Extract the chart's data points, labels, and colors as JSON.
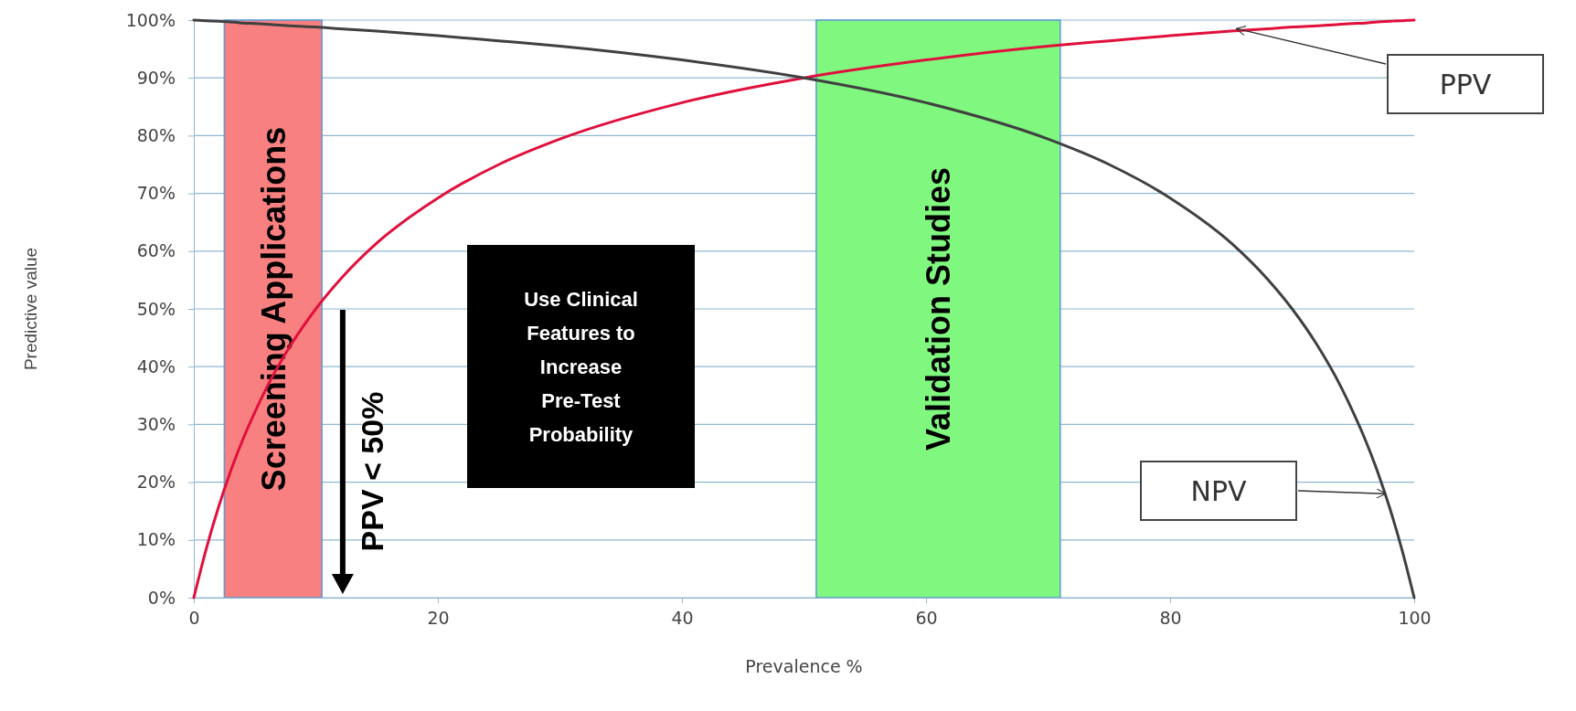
{
  "chart_data": {
    "type": "line",
    "xlabel": "Prevalence %",
    "ylabel": "Predictive value",
    "x": [
      0,
      1,
      2,
      3,
      4,
      5,
      6,
      8,
      10,
      12,
      15,
      20,
      25,
      30,
      40,
      50,
      60,
      70,
      75,
      80,
      85,
      88,
      90,
      92,
      94,
      95,
      96,
      97,
      98,
      99,
      100
    ],
    "series": [
      {
        "name": "PPV",
        "color": "#e0103c",
        "values": [
          0,
          8.3,
          15.5,
          21.8,
          27.3,
          32.1,
          36.5,
          43.9,
          50,
          55.1,
          61.4,
          69.2,
          75,
          79.4,
          85.7,
          90,
          93.1,
          95.5,
          96.4,
          97.3,
          98.1,
          98.5,
          98.8,
          99,
          99.3,
          99.4,
          99.5,
          99.7,
          99.8,
          99.9,
          100
        ]
      },
      {
        "name": "NPV",
        "color": "#404040",
        "values": [
          100,
          99.9,
          99.8,
          99.7,
          99.5,
          99.4,
          99.3,
          99,
          98.8,
          98.5,
          98.1,
          97.3,
          96.4,
          95.5,
          93.1,
          90,
          85.7,
          79.4,
          75,
          69.2,
          61.4,
          55.1,
          50,
          43.9,
          36.5,
          32.1,
          27.3,
          21.8,
          15.5,
          8.3,
          0
        ]
      }
    ],
    "xlim": [
      0,
      100
    ],
    "xticks": [
      0,
      20,
      40,
      60,
      80,
      100
    ],
    "ylim": [
      0,
      100
    ],
    "yticks": [
      {
        "value": 0,
        "label": "0%"
      },
      {
        "value": 10,
        "label": "10%"
      },
      {
        "value": 20,
        "label": "20%"
      },
      {
        "value": 30,
        "label": "30%"
      },
      {
        "value": 40,
        "label": "40%"
      },
      {
        "value": 50,
        "label": "50%"
      },
      {
        "value": 60,
        "label": "60%"
      },
      {
        "value": 70,
        "label": "70%"
      },
      {
        "value": 80,
        "label": "80%"
      },
      {
        "value": 90,
        "label": "90%"
      },
      {
        "value": 100,
        "label": "100%"
      }
    ],
    "grid": "y",
    "marker": "none",
    "line_style": "solid",
    "bands": [
      {
        "axis": "x",
        "from": 2.5,
        "to": 10.5,
        "label": "Screening Applications",
        "color": "#f98080"
      },
      {
        "axis": "x",
        "from": 51,
        "to": 71,
        "label": "Validation Studies",
        "color": "#80f880"
      }
    ],
    "annotations": [
      "PPV < 50%",
      "Use Clinical Features to Increase Pre-Test Probability"
    ]
  }
}
